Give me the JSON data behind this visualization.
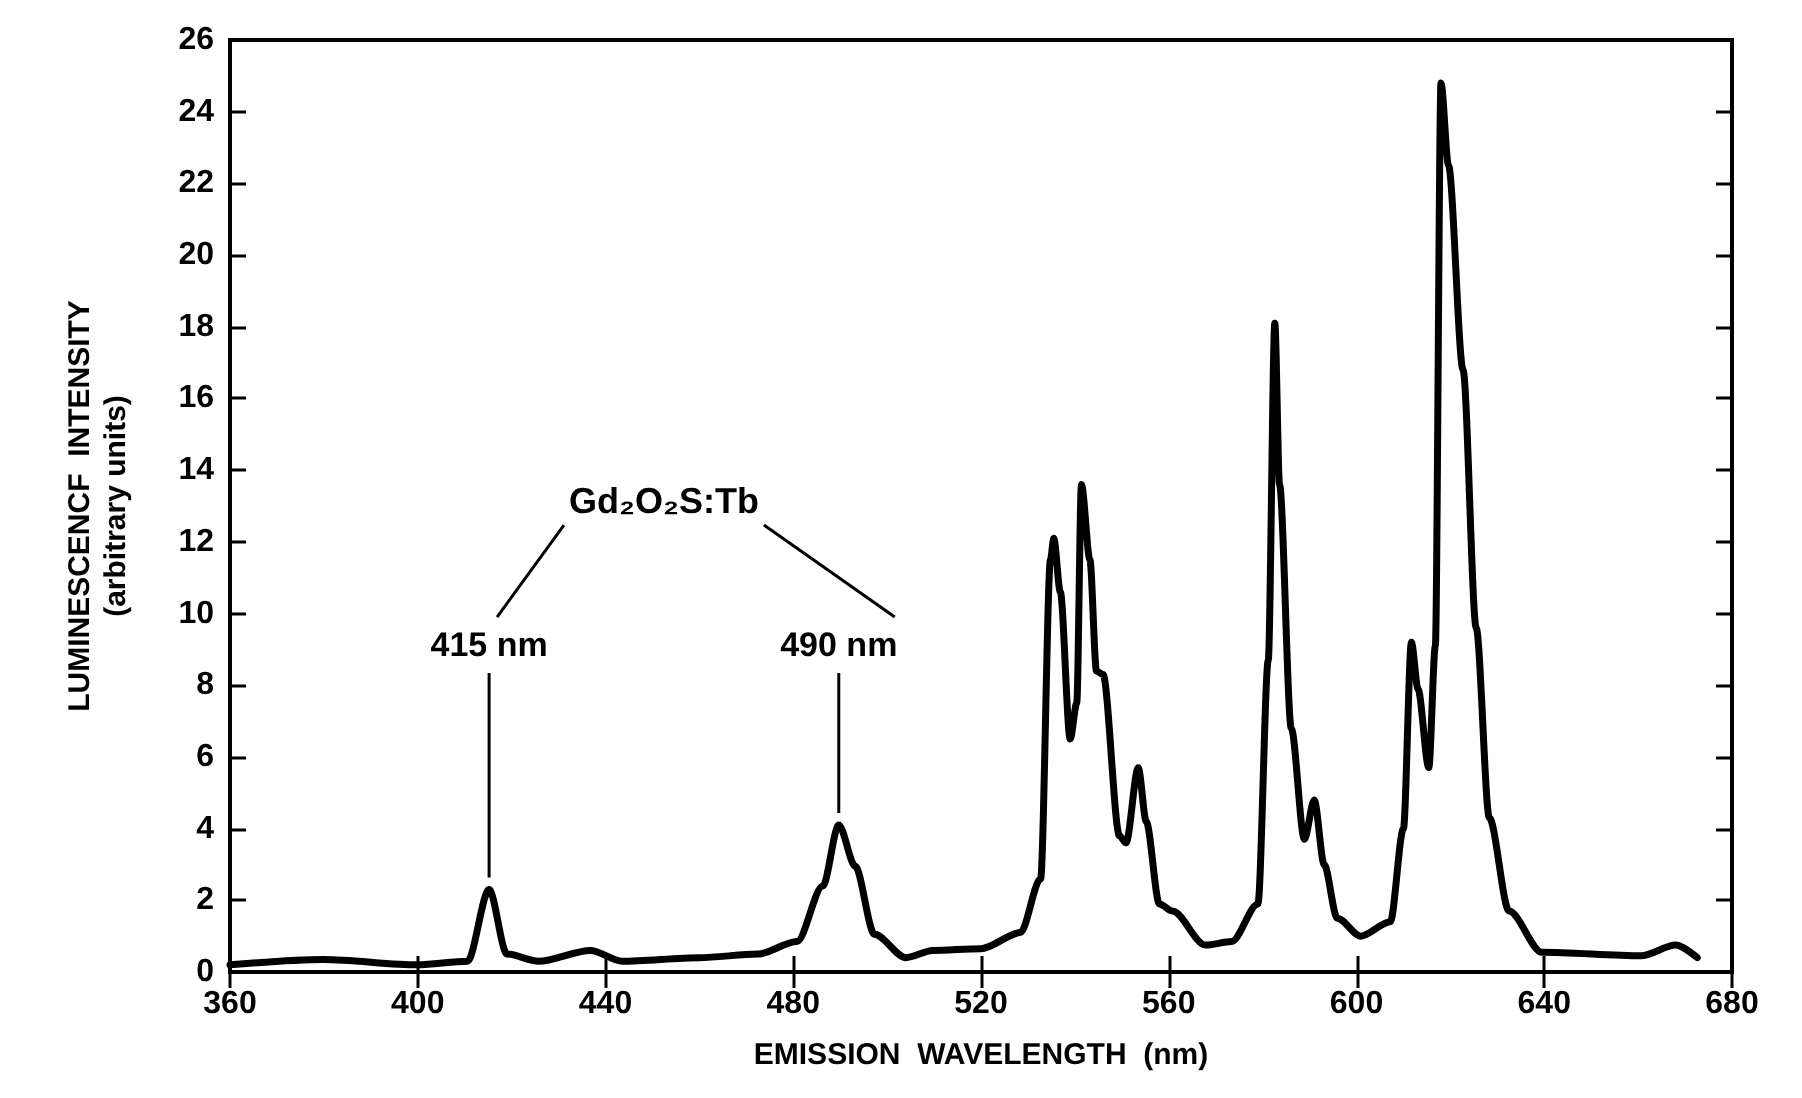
{
  "chart_data": {
    "type": "line",
    "xlabel": "EMISSION  WAVELENGTH  (nm)",
    "ylabel": "LUMINESCENCF  INTENSITY\n(arbitrary units)",
    "xlim": [
      360,
      680
    ],
    "xticks": [
      360,
      400,
      440,
      480,
      520,
      560,
      600,
      640,
      680
    ],
    "ylim": [
      0,
      26
    ],
    "yticks": [
      0,
      2,
      4,
      6,
      8,
      10,
      12,
      14,
      16,
      18,
      20,
      22,
      24,
      26
    ],
    "marker": "none",
    "line_style": "solid",
    "annotations": [
      "Gd₂O₂S:Tb",
      {
        "text": "415 nm",
        "x": 415.2,
        "y": 2.3
      },
      {
        "text": "490 nm",
        "x": 489.7,
        "y": 4.1
      }
    ],
    "series": [
      {
        "color": "#000000",
        "x": [
          360,
          380,
          400,
          410.6,
          415.2,
          419,
          425.7,
          436.8,
          443.6,
          460,
          472.5,
          480.8,
          486.3,
          489.7,
          493.2,
          497.3,
          504,
          509.7,
          520,
          528.4,
          532.7,
          534.8,
          535.5,
          536.9,
          539,
          540.4,
          541.4,
          543.2,
          544.6,
          546,
          549.5,
          550.9,
          553.5,
          555.2,
          558,
          560.8,
          567.8,
          573.4,
          579,
          581.2,
          582.6,
          583.6,
          586.1,
          588.9,
          591,
          593.1,
          595.9,
          600.9,
          607.2,
          610,
          611.7,
          613.1,
          615.4,
          616.8,
          618,
          619.6,
          622.7,
          625.5,
          628.3,
          632.5,
          639.5,
          660.6,
          668,
          672.6
        ],
        "values": [
          0.2,
          0.35,
          0.2,
          0.3,
          2.3,
          0.5,
          0.3,
          0.6,
          0.3,
          0.4,
          0.5,
          0.85,
          2.4,
          4.1,
          2.95,
          1.05,
          0.4,
          0.6,
          0.65,
          1.1,
          2.6,
          11.5,
          12.1,
          10.6,
          6.5,
          7.5,
          13.6,
          11.5,
          8.4,
          8.3,
          3.8,
          3.6,
          5.7,
          4.2,
          1.9,
          1.7,
          0.75,
          0.85,
          1.9,
          8.7,
          18.1,
          13.6,
          6.8,
          3.7,
          4.8,
          3.0,
          1.5,
          1.0,
          1.4,
          4.0,
          9.2,
          7.9,
          5.7,
          9.1,
          24.8,
          22.5,
          16.8,
          9.6,
          4.3,
          1.7,
          0.55,
          0.45,
          0.75,
          0.4
        ]
      }
    ]
  }
}
